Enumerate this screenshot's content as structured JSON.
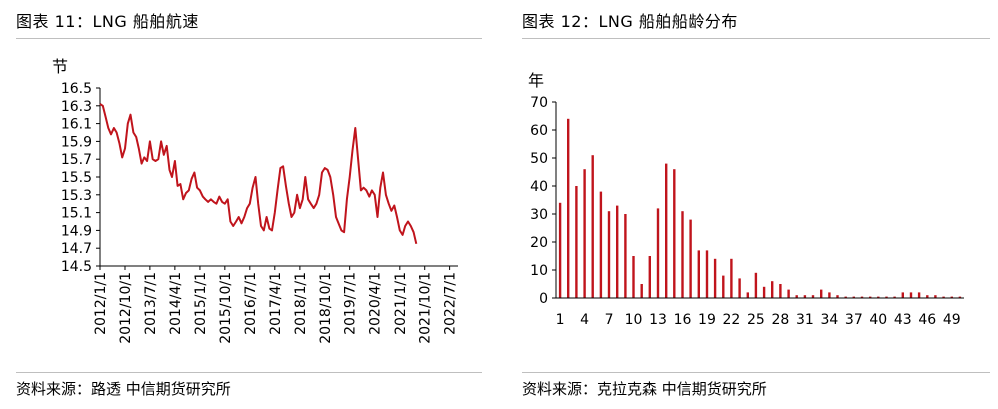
{
  "left": {
    "title": "图表 11：LNG 船舶航速",
    "source": "资料来源：路透 中信期货研究所"
  },
  "right": {
    "title": "图表 12：LNG 船舶船龄分布",
    "source": "资料来源：克拉克森 中信期货研究所"
  },
  "chart_data": [
    {
      "type": "line",
      "ylabel": "节",
      "ylim": [
        14.5,
        16.5
      ],
      "yticks": [
        "16.5",
        "16.3",
        "16.1",
        "15.9",
        "15.7",
        "15.5",
        "15.3",
        "15.1",
        "14.9",
        "14.7",
        "14.5"
      ],
      "xticks": [
        "2012/1/1",
        "2012/10/1",
        "2013/7/1",
        "2014/4/1",
        "2015/1/1",
        "2015/10/1",
        "2016/7/1",
        "2017/4/1",
        "2018/1/1",
        "2018/10/1",
        "2019/7/1",
        "2020/4/1",
        "2021/1/1",
        "2021/10/1",
        "2022/7/1"
      ],
      "x_range": [
        "2012-01-01",
        "2022-10-01"
      ],
      "color": "#c0141c",
      "series": [
        {
          "points": [
            [
              "2012-01-01",
              16.32
            ],
            [
              "2012-02-01",
              16.3
            ],
            [
              "2012-03-01",
              16.18
            ],
            [
              "2012-04-01",
              16.05
            ],
            [
              "2012-05-01",
              15.98
            ],
            [
              "2012-06-01",
              16.05
            ],
            [
              "2012-07-01",
              16.0
            ],
            [
              "2012-08-01",
              15.88
            ],
            [
              "2012-09-01",
              15.72
            ],
            [
              "2012-10-01",
              15.82
            ],
            [
              "2012-11-01",
              16.1
            ],
            [
              "2012-12-01",
              16.2
            ],
            [
              "2013-01-01",
              16.0
            ],
            [
              "2013-02-01",
              15.95
            ],
            [
              "2013-03-01",
              15.82
            ],
            [
              "2013-04-01",
              15.65
            ],
            [
              "2013-05-01",
              15.72
            ],
            [
              "2013-06-01",
              15.68
            ],
            [
              "2013-07-01",
              15.9
            ],
            [
              "2013-08-01",
              15.7
            ],
            [
              "2013-09-01",
              15.68
            ],
            [
              "2013-10-01",
              15.7
            ],
            [
              "2013-11-01",
              15.9
            ],
            [
              "2013-12-01",
              15.75
            ],
            [
              "2014-01-01",
              15.85
            ],
            [
              "2014-02-01",
              15.58
            ],
            [
              "2014-03-01",
              15.5
            ],
            [
              "2014-04-01",
              15.68
            ],
            [
              "2014-05-01",
              15.4
            ],
            [
              "2014-06-01",
              15.42
            ],
            [
              "2014-07-01",
              15.25
            ],
            [
              "2014-08-01",
              15.32
            ],
            [
              "2014-09-01",
              15.35
            ],
            [
              "2014-10-01",
              15.48
            ],
            [
              "2014-11-01",
              15.55
            ],
            [
              "2014-12-01",
              15.38
            ],
            [
              "2015-01-01",
              15.35
            ],
            [
              "2015-02-01",
              15.28
            ],
            [
              "2015-03-01",
              15.25
            ],
            [
              "2015-04-01",
              15.22
            ],
            [
              "2015-05-01",
              15.25
            ],
            [
              "2015-06-01",
              15.22
            ],
            [
              "2015-07-01",
              15.2
            ],
            [
              "2015-08-01",
              15.28
            ],
            [
              "2015-09-01",
              15.22
            ],
            [
              "2015-10-01",
              15.2
            ],
            [
              "2015-11-01",
              15.25
            ],
            [
              "2015-12-01",
              15.0
            ],
            [
              "2016-01-01",
              14.95
            ],
            [
              "2016-02-01",
              15.0
            ],
            [
              "2016-03-01",
              15.05
            ],
            [
              "2016-04-01",
              14.98
            ],
            [
              "2016-05-01",
              15.05
            ],
            [
              "2016-06-01",
              15.15
            ],
            [
              "2016-07-01",
              15.2
            ],
            [
              "2016-08-01",
              15.38
            ],
            [
              "2016-09-01",
              15.5
            ],
            [
              "2016-10-01",
              15.2
            ],
            [
              "2016-11-01",
              14.95
            ],
            [
              "2016-12-01",
              14.9
            ],
            [
              "2017-01-01",
              15.05
            ],
            [
              "2017-02-01",
              14.92
            ],
            [
              "2017-03-01",
              14.9
            ],
            [
              "2017-04-01",
              15.1
            ],
            [
              "2017-05-01",
              15.35
            ],
            [
              "2017-06-01",
              15.6
            ],
            [
              "2017-07-01",
              15.62
            ],
            [
              "2017-08-01",
              15.4
            ],
            [
              "2017-09-01",
              15.2
            ],
            [
              "2017-10-01",
              15.05
            ],
            [
              "2017-11-01",
              15.1
            ],
            [
              "2017-12-01",
              15.3
            ],
            [
              "2018-01-01",
              15.15
            ],
            [
              "2018-02-01",
              15.25
            ],
            [
              "2018-03-01",
              15.5
            ],
            [
              "2018-04-01",
              15.25
            ],
            [
              "2018-05-01",
              15.2
            ],
            [
              "2018-06-01",
              15.15
            ],
            [
              "2018-07-01",
              15.2
            ],
            [
              "2018-08-01",
              15.3
            ],
            [
              "2018-09-01",
              15.55
            ],
            [
              "2018-10-01",
              15.6
            ],
            [
              "2018-11-01",
              15.58
            ],
            [
              "2018-12-01",
              15.5
            ],
            [
              "2019-01-01",
              15.3
            ],
            [
              "2019-02-01",
              15.05
            ],
            [
              "2019-03-01",
              14.98
            ],
            [
              "2019-04-01",
              14.9
            ],
            [
              "2019-05-01",
              14.88
            ],
            [
              "2019-06-01",
              15.25
            ],
            [
              "2019-07-01",
              15.5
            ],
            [
              "2019-08-01",
              15.8
            ],
            [
              "2019-09-01",
              16.05
            ],
            [
              "2019-10-01",
              15.7
            ],
            [
              "2019-11-01",
              15.35
            ],
            [
              "2019-12-01",
              15.38
            ],
            [
              "2020-01-01",
              15.35
            ],
            [
              "2020-02-01",
              15.28
            ],
            [
              "2020-03-01",
              15.35
            ],
            [
              "2020-04-01",
              15.3
            ],
            [
              "2020-05-01",
              15.05
            ],
            [
              "2020-06-01",
              15.38
            ],
            [
              "2020-07-01",
              15.55
            ],
            [
              "2020-08-01",
              15.3
            ],
            [
              "2020-09-01",
              15.2
            ],
            [
              "2020-10-01",
              15.12
            ],
            [
              "2020-11-01",
              15.18
            ],
            [
              "2020-12-01",
              15.05
            ],
            [
              "2021-01-01",
              14.9
            ],
            [
              "2021-02-01",
              14.85
            ],
            [
              "2021-03-01",
              14.95
            ],
            [
              "2021-04-01",
              15.0
            ],
            [
              "2021-05-01",
              14.95
            ],
            [
              "2021-06-01",
              14.88
            ],
            [
              "2021-07-01",
              14.75
            ]
          ]
        }
      ]
    },
    {
      "type": "bar",
      "ylabel": "年",
      "ylim": [
        0,
        70
      ],
      "yticks": [
        "70",
        "60",
        "50",
        "40",
        "30",
        "20",
        "10",
        "0"
      ],
      "xticks": [
        "1",
        "4",
        "7",
        "10",
        "13",
        "16",
        "19",
        "22",
        "25",
        "28",
        "31",
        "34",
        "37",
        "40",
        "43",
        "46",
        "49"
      ],
      "color": "#c0141c",
      "categories": [
        1,
        2,
        3,
        4,
        5,
        6,
        7,
        8,
        9,
        10,
        11,
        12,
        13,
        14,
        15,
        16,
        17,
        18,
        19,
        20,
        21,
        22,
        23,
        24,
        25,
        26,
        27,
        28,
        29,
        30,
        31,
        32,
        33,
        34,
        35,
        36,
        37,
        38,
        39,
        40,
        41,
        42,
        43,
        44,
        45,
        46,
        47,
        48,
        49,
        50
      ],
      "values": [
        34,
        64,
        40,
        46,
        51,
        38,
        31,
        33,
        30,
        15,
        5,
        15,
        32,
        48,
        46,
        31,
        28,
        17,
        17,
        14,
        8,
        14,
        7,
        2,
        9,
        4,
        6,
        5,
        3,
        1,
        1,
        1,
        3,
        2,
        1,
        0.5,
        0.5,
        0.5,
        0.5,
        0.5,
        0.5,
        0.5,
        2,
        2,
        2,
        1,
        1,
        0.5,
        0.5,
        0.5
      ]
    }
  ]
}
